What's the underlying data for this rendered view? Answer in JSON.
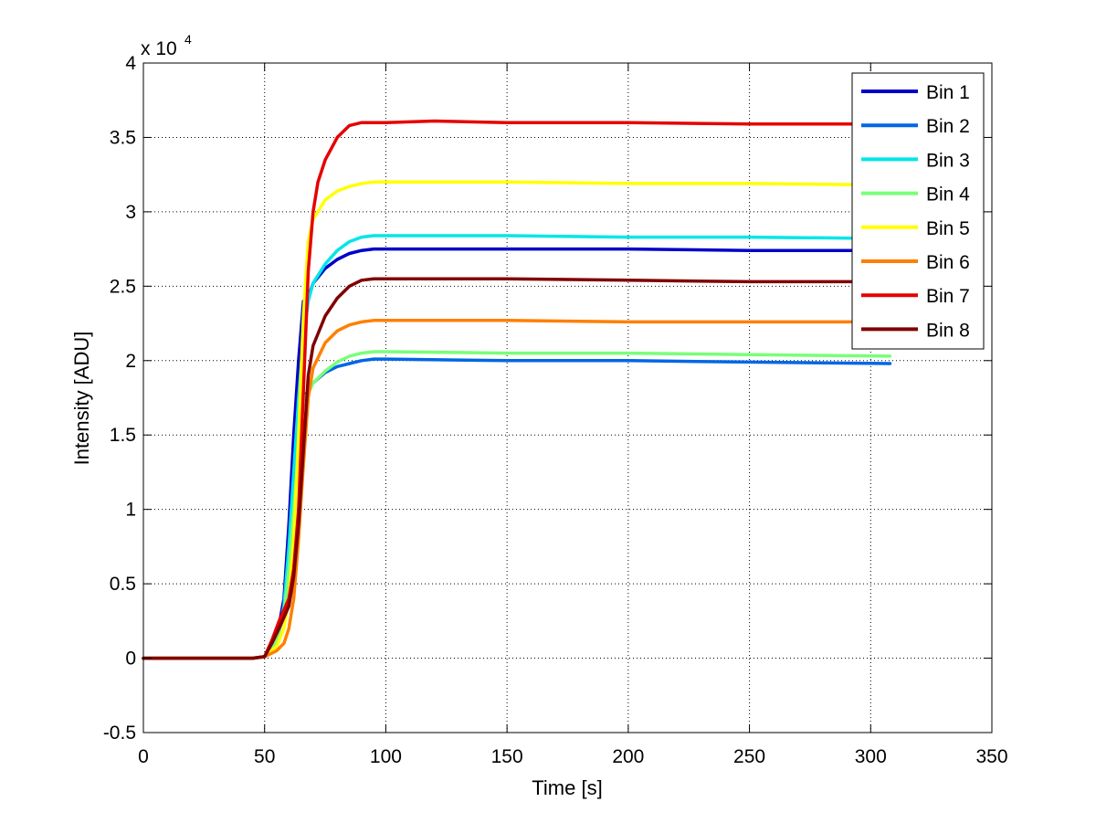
{
  "chart_data": {
    "type": "line",
    "title": "",
    "xlabel": "Time [s]",
    "ylabel": "Intensity [ADU]",
    "y_exponent_base": "x 10",
    "y_exponent_power": "4",
    "xlim": [
      0,
      350
    ],
    "ylim": [
      -0.5,
      4
    ],
    "xticks": [
      0,
      50,
      100,
      150,
      200,
      250,
      300,
      350
    ],
    "yticks": [
      -0.5,
      0,
      0.5,
      1,
      1.5,
      2,
      2.5,
      3,
      3.5,
      4
    ],
    "x_tick_labels": [
      "0",
      "50",
      "100",
      "150",
      "200",
      "250",
      "300",
      "350"
    ],
    "y_tick_labels": [
      "-0.5",
      "0",
      "0.5",
      "1",
      "1.5",
      "2",
      "2.5",
      "3",
      "3.5",
      "4"
    ],
    "grid": true,
    "legend_position": "top-right",
    "series": [
      {
        "name": "Bin 1",
        "color": "#0000c8",
        "x": [
          0,
          45,
          50,
          55,
          58,
          60,
          62,
          64,
          66,
          68,
          70,
          75,
          80,
          85,
          90,
          95,
          100,
          150,
          200,
          250,
          308
        ],
        "y": [
          0,
          0,
          0.01,
          0.14,
          0.4,
          0.9,
          1.5,
          2.0,
          2.4,
          2.42,
          2.52,
          2.62,
          2.68,
          2.72,
          2.74,
          2.75,
          2.75,
          2.75,
          2.75,
          2.74,
          2.74
        ]
      },
      {
        "name": "Bin 2",
        "color": "#0066e6",
        "x": [
          0,
          45,
          50,
          55,
          58,
          60,
          62,
          64,
          66,
          68,
          70,
          75,
          80,
          85,
          90,
          95,
          100,
          150,
          200,
          250,
          308
        ],
        "y": [
          0,
          0,
          0.01,
          0.12,
          0.3,
          0.6,
          1.0,
          1.4,
          1.75,
          1.8,
          1.85,
          1.92,
          1.96,
          1.98,
          2.0,
          2.01,
          2.01,
          2.0,
          2.0,
          1.99,
          1.98
        ]
      },
      {
        "name": "Bin 3",
        "color": "#00e6e6",
        "x": [
          0,
          45,
          50,
          55,
          58,
          60,
          62,
          64,
          66,
          68,
          70,
          75,
          80,
          85,
          90,
          95,
          100,
          150,
          200,
          250,
          308
        ],
        "y": [
          0,
          0,
          0.01,
          0.12,
          0.35,
          0.75,
          1.25,
          1.75,
          2.15,
          2.4,
          2.52,
          2.65,
          2.74,
          2.8,
          2.83,
          2.84,
          2.84,
          2.84,
          2.83,
          2.83,
          2.82
        ]
      },
      {
        "name": "Bin 4",
        "color": "#78ff78",
        "x": [
          0,
          45,
          50,
          55,
          58,
          60,
          62,
          64,
          66,
          68,
          70,
          75,
          80,
          85,
          90,
          95,
          100,
          150,
          200,
          250,
          308
        ],
        "y": [
          0,
          0,
          0.01,
          0.12,
          0.3,
          0.6,
          1.0,
          1.4,
          1.75,
          1.78,
          1.85,
          1.93,
          1.99,
          2.03,
          2.05,
          2.06,
          2.06,
          2.05,
          2.05,
          2.04,
          2.03
        ]
      },
      {
        "name": "Bin 5",
        "color": "#ffff00",
        "x": [
          0,
          45,
          50,
          55,
          58,
          60,
          62,
          64,
          66,
          68,
          70,
          75,
          80,
          85,
          90,
          95,
          100,
          150,
          200,
          250,
          308
        ],
        "y": [
          0,
          0,
          0.01,
          0.08,
          0.2,
          0.4,
          0.8,
          1.5,
          2.3,
          2.8,
          2.95,
          3.08,
          3.14,
          3.17,
          3.19,
          3.2,
          3.2,
          3.2,
          3.19,
          3.19,
          3.18
        ]
      },
      {
        "name": "Bin 6",
        "color": "#ff7f00",
        "x": [
          0,
          45,
          50,
          55,
          58,
          60,
          62,
          64,
          66,
          68,
          70,
          75,
          80,
          85,
          90,
          95,
          100,
          150,
          200,
          250,
          308
        ],
        "y": [
          0,
          0,
          0.01,
          0.05,
          0.1,
          0.2,
          0.4,
          0.8,
          1.3,
          1.75,
          1.95,
          2.12,
          2.2,
          2.24,
          2.26,
          2.27,
          2.27,
          2.27,
          2.26,
          2.26,
          2.26
        ]
      },
      {
        "name": "Bin 7",
        "color": "#e60000",
        "x": [
          0,
          45,
          50,
          53,
          56,
          60,
          62,
          64,
          66,
          68,
          70,
          72,
          75,
          80,
          85,
          90,
          95,
          100,
          120,
          150,
          200,
          250,
          308
        ],
        "y": [
          0,
          0,
          0.01,
          0.12,
          0.25,
          0.4,
          0.6,
          1.0,
          1.8,
          2.6,
          3.0,
          3.2,
          3.35,
          3.5,
          3.58,
          3.6,
          3.6,
          3.6,
          3.61,
          3.6,
          3.6,
          3.59,
          3.59
        ]
      },
      {
        "name": "Bin 8",
        "color": "#800000",
        "x": [
          0,
          45,
          50,
          53,
          56,
          60,
          62,
          64,
          66,
          68,
          70,
          75,
          80,
          85,
          90,
          95,
          100,
          150,
          200,
          250,
          308
        ],
        "y": [
          0,
          0,
          0.01,
          0.1,
          0.2,
          0.35,
          0.55,
          0.9,
          1.4,
          1.9,
          2.1,
          2.3,
          2.42,
          2.5,
          2.54,
          2.55,
          2.55,
          2.55,
          2.54,
          2.53,
          2.53
        ]
      }
    ]
  }
}
